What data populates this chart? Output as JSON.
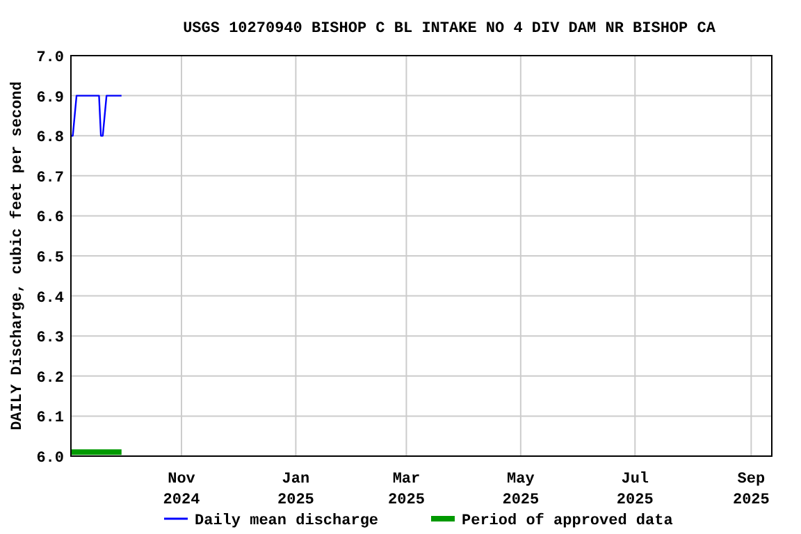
{
  "chart_data": {
    "type": "line",
    "title": "USGS 10270940 BISHOP C BL INTAKE NO 4 DIV DAM NR BISHOP CA",
    "ylabel": "DAILY Discharge, cubic feet per second",
    "x": [
      "2024-09-03",
      "2024-09-04",
      "2024-09-05",
      "2024-09-06",
      "2024-09-18",
      "2024-09-19",
      "2024-09-20",
      "2024-09-21",
      "2024-09-22",
      "2024-09-30"
    ],
    "series": [
      {
        "name": "Daily mean discharge",
        "color": "#0000ff",
        "values": [
          6.8,
          6.8,
          6.85,
          6.9,
          6.9,
          6.8,
          6.8,
          6.85,
          6.9,
          6.9
        ]
      },
      {
        "name": "Period of approved data",
        "color": "#009900",
        "x": [
          "2024-09-03",
          "2024-09-30"
        ],
        "values": [
          6.01,
          6.01
        ]
      }
    ],
    "xlim": [
      "2024-09-03",
      "2025-09-12"
    ],
    "xticks": [
      {
        "value": "2024-11-01",
        "label": "Nov\n2024"
      },
      {
        "value": "2025-01-01",
        "label": "Jan\n2025"
      },
      {
        "value": "2025-03-01",
        "label": "Mar\n2025"
      },
      {
        "value": "2025-05-01",
        "label": "May\n2025"
      },
      {
        "value": "2025-07-01",
        "label": "Jul\n2025"
      },
      {
        "value": "2025-09-01",
        "label": "Sep\n2025"
      }
    ],
    "ylim": [
      6.0,
      7.0
    ],
    "yticks": [
      {
        "value": 6.0,
        "label": "6.0"
      },
      {
        "value": 6.1,
        "label": "6.1"
      },
      {
        "value": 6.2,
        "label": "6.2"
      },
      {
        "value": 6.3,
        "label": "6.3"
      },
      {
        "value": 6.4,
        "label": "6.4"
      },
      {
        "value": 6.5,
        "label": "6.5"
      },
      {
        "value": 6.6,
        "label": "6.6"
      },
      {
        "value": 6.7,
        "label": "6.7"
      },
      {
        "value": 6.8,
        "label": "6.8"
      },
      {
        "value": 6.9,
        "label": "6.9"
      },
      {
        "value": 7.0,
        "label": "7.0"
      }
    ],
    "grid": true,
    "legend": "bottom",
    "line_style": "solid",
    "marker": "none"
  }
}
